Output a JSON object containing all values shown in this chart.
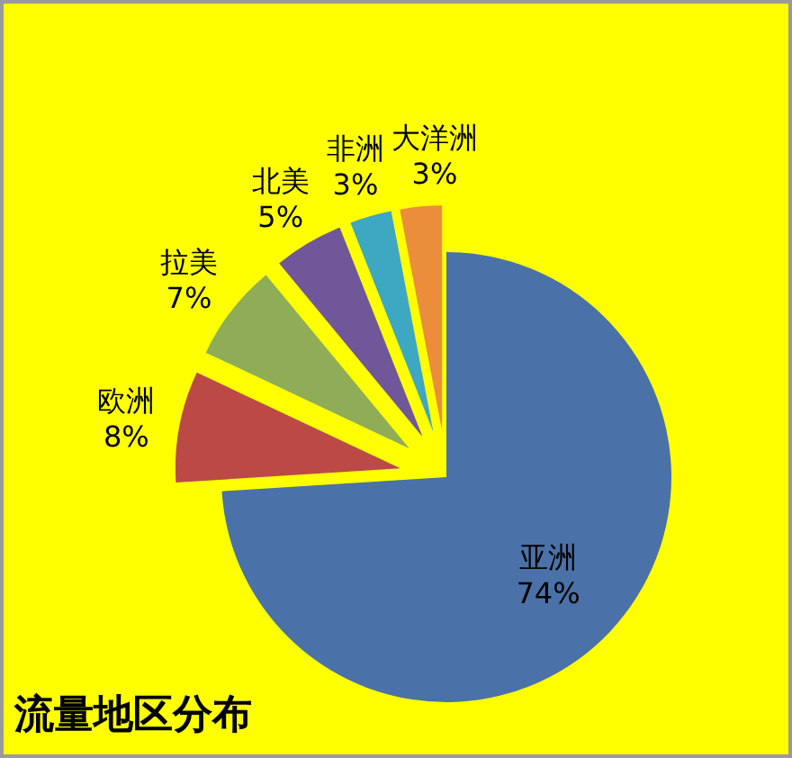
{
  "chart_data": {
    "type": "pie",
    "title": "流量地区分布",
    "categories": [
      "亚洲",
      "欧洲",
      "拉美",
      "北美",
      "非洲",
      "大洋洲"
    ],
    "values": [
      74,
      8,
      7,
      5,
      3,
      3
    ],
    "colors": [
      "#4a72a8",
      "#bb4a47",
      "#8fac57",
      "#6f579a",
      "#3ea7c2",
      "#ea8e3b"
    ],
    "value_labels": [
      "74%",
      "8%",
      "7%",
      "5%",
      "3%",
      "3%"
    ]
  }
}
